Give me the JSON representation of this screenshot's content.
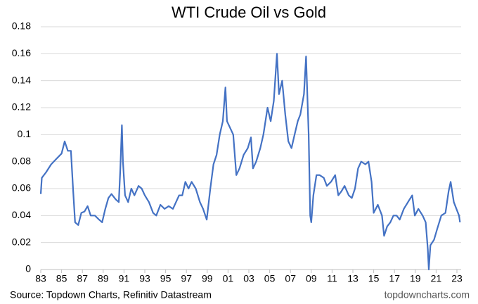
{
  "chart_data": {
    "type": "line",
    "title": "WTI Crude Oil vs Gold",
    "source": "Source: Topdown Charts, Refinitiv Datastream",
    "watermark": "topdowncharts.com",
    "grid": true,
    "xlim": [
      1983,
      2023.3
    ],
    "xticks": [
      {
        "value": 1983,
        "label": "83"
      },
      {
        "value": 1985,
        "label": "85"
      },
      {
        "value": 1987,
        "label": "87"
      },
      {
        "value": 1989,
        "label": "89"
      },
      {
        "value": 1991,
        "label": "91"
      },
      {
        "value": 1993,
        "label": "93"
      },
      {
        "value": 1995,
        "label": "95"
      },
      {
        "value": 1997,
        "label": "97"
      },
      {
        "value": 1999,
        "label": "99"
      },
      {
        "value": 2001,
        "label": "01"
      },
      {
        "value": 2003,
        "label": "03"
      },
      {
        "value": 2005,
        "label": "05"
      },
      {
        "value": 2007,
        "label": "07"
      },
      {
        "value": 2009,
        "label": "09"
      },
      {
        "value": 2011,
        "label": "11"
      },
      {
        "value": 2013,
        "label": "13"
      },
      {
        "value": 2015,
        "label": "15"
      },
      {
        "value": 2017,
        "label": "17"
      },
      {
        "value": 2019,
        "label": "19"
      },
      {
        "value": 2021,
        "label": "21"
      },
      {
        "value": 2023,
        "label": "23"
      }
    ],
    "ylim": [
      0,
      0.18
    ],
    "yticks": [
      0,
      0.02,
      0.04,
      0.06,
      0.08,
      0.1,
      0.12,
      0.14,
      0.16,
      0.18
    ],
    "x": [
      1983.0,
      1983.1,
      1983.5,
      1984,
      1984.5,
      1985,
      1985.3,
      1985.6,
      1985.9,
      1986.1,
      1986.3,
      1986.6,
      1986.9,
      1987.2,
      1987.5,
      1987.8,
      1988.2,
      1988.6,
      1988.9,
      1989.2,
      1989.5,
      1989.8,
      1990.2,
      1990.5,
      1990.65,
      1990.8,
      1990.9,
      1991.1,
      1991.4,
      1991.7,
      1992,
      1992.4,
      1992.7,
      1993,
      1993.4,
      1993.8,
      1994.1,
      1994.5,
      1994.9,
      1995.3,
      1995.7,
      1996,
      1996.3,
      1996.6,
      1996.9,
      1997.2,
      1997.5,
      1997.9,
      1998.3,
      1998.6,
      1998.95,
      1999.3,
      1999.6,
      1999.9,
      2000.2,
      2000.5,
      2000.75,
      2000.9,
      2001.2,
      2001.5,
      2001.8,
      2002.1,
      2002.5,
      2002.9,
      2003.2,
      2003.4,
      2003.7,
      2004.1,
      2004.4,
      2004.8,
      2005.1,
      2005.4,
      2005.7,
      2005.9,
      2006.2,
      2006.5,
      2006.8,
      2007.1,
      2007.4,
      2007.7,
      2007.95,
      2008.3,
      2008.5,
      2008.75,
      2008.9,
      2009.0,
      2009.2,
      2009.5,
      2009.8,
      2010.2,
      2010.5,
      2010.9,
      2011.3,
      2011.6,
      2011.9,
      2012.2,
      2012.6,
      2012.9,
      2013.2,
      2013.5,
      2013.8,
      2014.2,
      2014.5,
      2014.8,
      2015.0,
      2015.4,
      2015.8,
      2016.0,
      2016.3,
      2016.6,
      2016.9,
      2017.2,
      2017.5,
      2017.9,
      2018.3,
      2018.7,
      2018.95,
      2019.3,
      2019.7,
      2020.0,
      2020.2,
      2020.3,
      2020.45,
      2020.8,
      2021.1,
      2021.5,
      2021.9,
      2022.2,
      2022.4,
      2022.7,
      2022.95,
      2023.2,
      2023.3
    ],
    "series": [
      {
        "name": "WTI Crude Oil vs Gold",
        "color": "#4472c4",
        "values": [
          0.056,
          0.068,
          0.072,
          0.078,
          0.082,
          0.086,
          0.095,
          0.088,
          0.088,
          0.06,
          0.035,
          0.033,
          0.042,
          0.043,
          0.047,
          0.04,
          0.04,
          0.037,
          0.035,
          0.045,
          0.053,
          0.056,
          0.052,
          0.05,
          0.075,
          0.107,
          0.08,
          0.055,
          0.05,
          0.06,
          0.055,
          0.062,
          0.06,
          0.055,
          0.05,
          0.042,
          0.04,
          0.048,
          0.045,
          0.047,
          0.045,
          0.05,
          0.055,
          0.055,
          0.065,
          0.06,
          0.065,
          0.06,
          0.05,
          0.045,
          0.037,
          0.06,
          0.078,
          0.085,
          0.1,
          0.11,
          0.135,
          0.11,
          0.105,
          0.1,
          0.07,
          0.075,
          0.085,
          0.09,
          0.098,
          0.075,
          0.08,
          0.09,
          0.1,
          0.12,
          0.11,
          0.125,
          0.16,
          0.13,
          0.14,
          0.115,
          0.095,
          0.09,
          0.1,
          0.11,
          0.115,
          0.13,
          0.158,
          0.1,
          0.04,
          0.035,
          0.055,
          0.07,
          0.07,
          0.068,
          0.062,
          0.065,
          0.07,
          0.055,
          0.058,
          0.062,
          0.055,
          0.053,
          0.06,
          0.075,
          0.08,
          0.078,
          0.08,
          0.065,
          0.042,
          0.048,
          0.04,
          0.025,
          0.032,
          0.035,
          0.04,
          0.04,
          0.037,
          0.045,
          0.05,
          0.055,
          0.04,
          0.045,
          0.04,
          0.035,
          0.015,
          0.0,
          0.018,
          0.022,
          0.03,
          0.04,
          0.042,
          0.058,
          0.065,
          0.05,
          0.045,
          0.04,
          0.035
        ]
      }
    ]
  }
}
